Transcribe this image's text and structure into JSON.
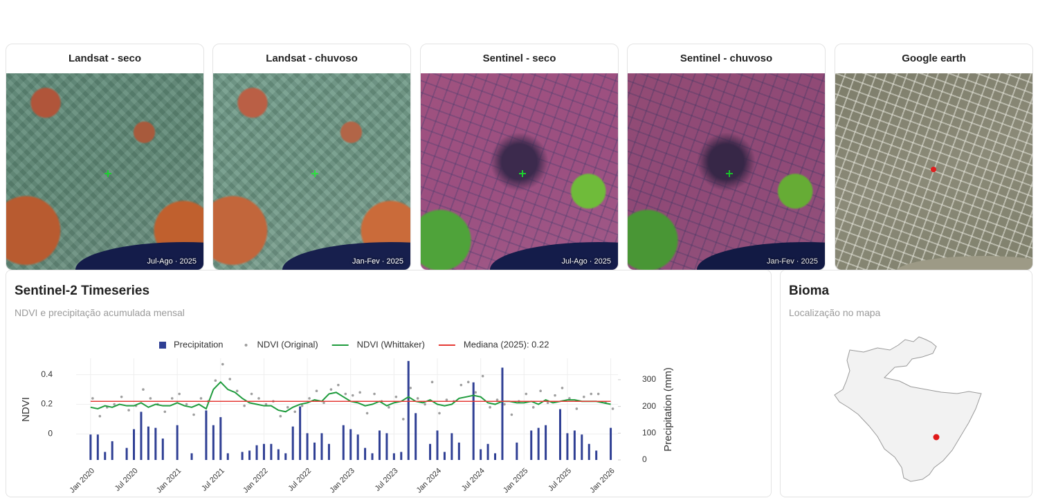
{
  "panels": [
    {
      "title": "Landsat - seco",
      "badge": "Jul-Ago · 2025"
    },
    {
      "title": "Landsat - chuvoso",
      "badge": "Jan-Fev · 2025"
    },
    {
      "title": "Sentinel - seco",
      "badge": "Jul-Ago · 2025"
    },
    {
      "title": "Sentinel - chuvoso",
      "badge": "Jan-Fev · 2025"
    },
    {
      "title": "Google earth"
    }
  ],
  "timeseries": {
    "title": "Sentinel-2 Timeseries",
    "subtitle": "NDVI e precipitação acumulada mensal"
  },
  "bioma": {
    "title": "Bioma",
    "subtitle": "Localização no mapa"
  },
  "chart_data": {
    "type": "combo",
    "y_label": "NDVI",
    "y2_label": "Precipitation (mm)",
    "x": [
      "2020-01",
      "2020-02",
      "2020-03",
      "2020-04",
      "2020-05",
      "2020-06",
      "2020-07",
      "2020-08",
      "2020-09",
      "2020-10",
      "2020-11",
      "2020-12",
      "2021-01",
      "2021-02",
      "2021-03",
      "2021-04",
      "2021-05",
      "2021-06",
      "2021-07",
      "2021-08",
      "2021-09",
      "2021-10",
      "2021-11",
      "2021-12",
      "2022-01",
      "2022-02",
      "2022-03",
      "2022-04",
      "2022-05",
      "2022-06",
      "2022-07",
      "2022-08",
      "2022-09",
      "2022-10",
      "2022-11",
      "2022-12",
      "2023-01",
      "2023-02",
      "2023-03",
      "2023-04",
      "2023-05",
      "2023-06",
      "2023-07",
      "2023-08",
      "2023-09",
      "2023-10",
      "2023-11",
      "2023-12",
      "2024-01",
      "2024-02",
      "2024-03",
      "2024-04",
      "2024-05",
      "2024-06",
      "2024-07",
      "2024-08",
      "2024-09",
      "2024-10",
      "2024-11",
      "2024-12",
      "2025-01",
      "2025-02",
      "2025-03",
      "2025-04",
      "2025-05",
      "2025-06",
      "2025-07",
      "2025-08",
      "2025-09",
      "2025-10",
      "2025-11",
      "2025-12",
      "2026-01"
    ],
    "xlim": [
      "2019-11",
      "2026-02"
    ],
    "xticks": [
      {
        "value": "2020-01",
        "label": "Jan 2020"
      },
      {
        "value": "2020-07",
        "label": "Jul 2020"
      },
      {
        "value": "2021-01",
        "label": "Jan 2021"
      },
      {
        "value": "2021-07",
        "label": "Jul 2021"
      },
      {
        "value": "2022-01",
        "label": "Jan 2022"
      },
      {
        "value": "2022-07",
        "label": "Jul 2022"
      },
      {
        "value": "2023-01",
        "label": "Jan 2023"
      },
      {
        "value": "2023-07",
        "label": "Jul 2023"
      },
      {
        "value": "2024-01",
        "label": "Jan 2024"
      },
      {
        "value": "2024-07",
        "label": "Jul 2024"
      },
      {
        "value": "2025-01",
        "label": "Jan 2025"
      },
      {
        "value": "2025-07",
        "label": "Jul 2025"
      },
      {
        "value": "2026-01",
        "label": "Jan 2026"
      }
    ],
    "ylim": [
      -0.175,
      0.51
    ],
    "yticks": [
      0,
      0.2,
      0.4
    ],
    "y2lim": [
      0,
      380
    ],
    "y2ticks": [
      0,
      100,
      200,
      300
    ],
    "grid": true,
    "series": [
      {
        "name": "Precipitation",
        "type": "bar",
        "axis": "y2",
        "color": "#2f3f94",
        "values": [
          95,
          95,
          30,
          70,
          0,
          45,
          115,
          180,
          125,
          120,
          80,
          0,
          130,
          0,
          25,
          0,
          185,
          130,
          160,
          25,
          0,
          30,
          35,
          55,
          60,
          60,
          40,
          25,
          125,
          200,
          100,
          65,
          100,
          60,
          0,
          130,
          115,
          95,
          45,
          25,
          110,
          100,
          25,
          30,
          370,
          175,
          0,
          60,
          110,
          30,
          100,
          65,
          0,
          290,
          40,
          60,
          25,
          345,
          0,
          65,
          0,
          110,
          120,
          130,
          0,
          190,
          100,
          110,
          95,
          60,
          35,
          0,
          120
        ]
      },
      {
        "name": "NDVI (Original)",
        "type": "scatter",
        "color": "#9e9e9e",
        "values": [
          0.24,
          0.12,
          0.18,
          0.2,
          0.25,
          0.16,
          0.19,
          0.3,
          0.24,
          0.2,
          0.15,
          0.24,
          0.27,
          0.2,
          0.13,
          0.24,
          0.22,
          0.36,
          0.47,
          0.37,
          0.29,
          0.19,
          0.27,
          0.24,
          0.2,
          0.22,
          0.12,
          0.18,
          0.15,
          0.19,
          0.24,
          0.29,
          0.21,
          0.3,
          0.33,
          0.27,
          0.26,
          0.28,
          0.14,
          0.27,
          0.22,
          0.18,
          0.25,
          0.1,
          0.31,
          0.24,
          0.2,
          0.35,
          0.14,
          0.23,
          0.22,
          0.33,
          0.35,
          0.28,
          0.39,
          0.18,
          0.23,
          0.2,
          0.13,
          0.22,
          0.27,
          0.18,
          0.29,
          0.21,
          0.26,
          0.31,
          0.24,
          0.17,
          0.25,
          0.27,
          0.27,
          0.21,
          0.17
        ]
      },
      {
        "name": "NDVI (Whittaker)",
        "type": "line",
        "color": "#1e9b3c",
        "values": [
          0.18,
          0.17,
          0.19,
          0.18,
          0.2,
          0.19,
          0.19,
          0.21,
          0.18,
          0.2,
          0.19,
          0.19,
          0.21,
          0.19,
          0.18,
          0.2,
          0.17,
          0.3,
          0.35,
          0.3,
          0.28,
          0.24,
          0.21,
          0.2,
          0.19,
          0.19,
          0.16,
          0.15,
          0.18,
          0.2,
          0.21,
          0.23,
          0.22,
          0.27,
          0.28,
          0.25,
          0.22,
          0.21,
          0.19,
          0.2,
          0.22,
          0.19,
          0.21,
          0.22,
          0.25,
          0.22,
          0.21,
          0.23,
          0.2,
          0.19,
          0.2,
          0.24,
          0.25,
          0.26,
          0.25,
          0.21,
          0.2,
          0.22,
          0.22,
          0.21,
          0.21,
          0.22,
          0.2,
          0.23,
          0.21,
          0.22,
          0.23,
          0.23,
          0.22,
          0.22,
          0.22,
          0.21,
          0.2
        ]
      },
      {
        "name": "Mediana (2025): 0.22",
        "type": "hline",
        "color": "#e53935",
        "value": 0.22
      }
    ]
  }
}
